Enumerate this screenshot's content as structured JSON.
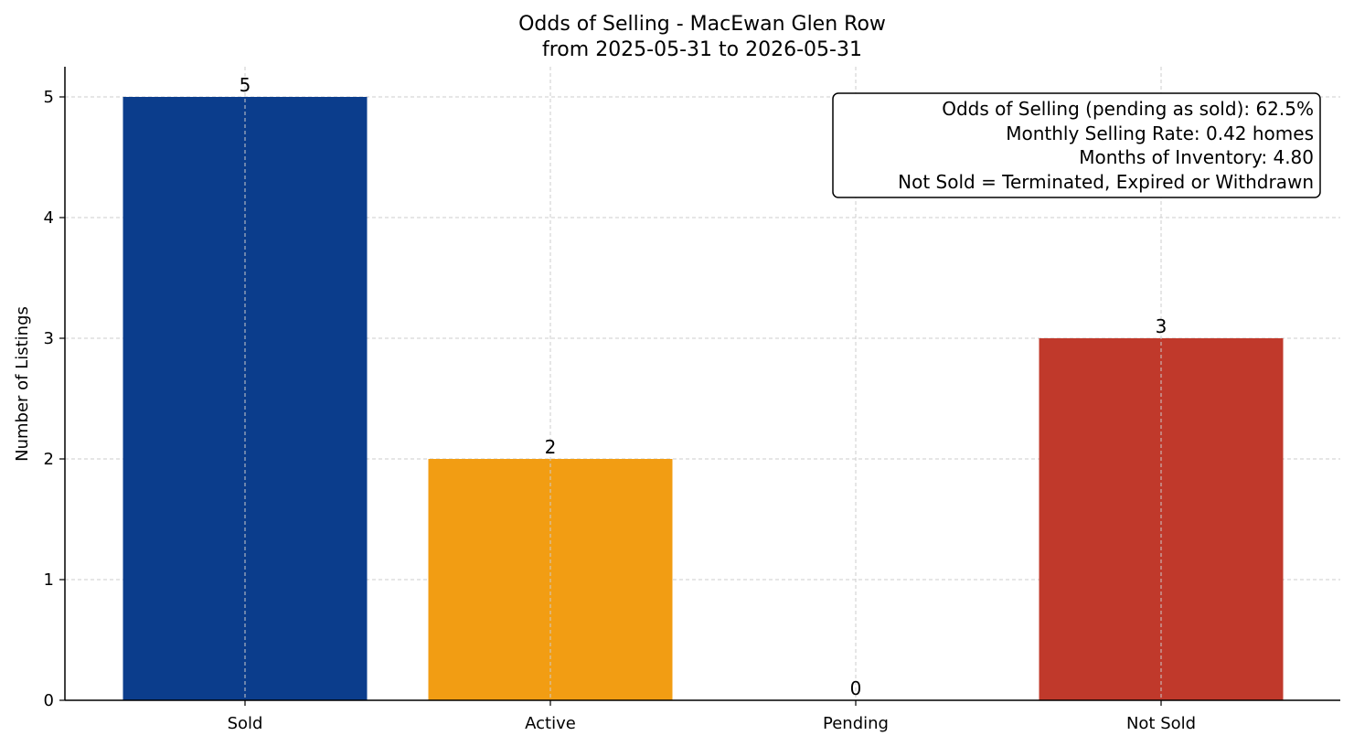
{
  "chart_data": {
    "type": "bar",
    "title_lines": [
      "Odds of Selling - MacEwan Glen Row",
      "from 2025-05-31 to 2026-05-31"
    ],
    "xlabel": "",
    "ylabel": "Number of Listings",
    "categories": [
      "Sold",
      "Active",
      "Pending",
      "Not Sold"
    ],
    "values": [
      5,
      2,
      0,
      3
    ],
    "data_labels": [
      "5",
      "2",
      "0",
      "3"
    ],
    "colors": [
      "#0b3d8c",
      "#f29d13",
      "#2a9d5c",
      "#c0392b"
    ],
    "ylim": [
      0,
      5.25
    ],
    "yticks": [
      0,
      1,
      2,
      3,
      4,
      5
    ],
    "ytick_labels": [
      "0",
      "1",
      "2",
      "3",
      "4",
      "5"
    ],
    "grid": true,
    "legend": "none"
  },
  "info_box": {
    "placement": "top-right",
    "lines": [
      "Odds of Selling (pending as sold): 62.5%",
      "Monthly Selling Rate: 0.42 homes",
      "Months of Inventory: 4.80",
      "Not Sold = Terminated, Expired or Withdrawn"
    ]
  }
}
